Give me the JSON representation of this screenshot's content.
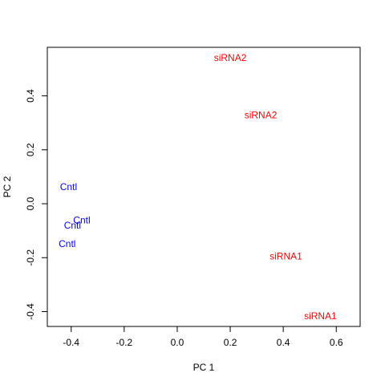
{
  "chart_data": {
    "type": "scatter",
    "title": "",
    "xlabel": "PC 1",
    "ylabel": "PC 2",
    "xlim": [
      -0.49,
      0.69
    ],
    "ylim": [
      -0.455,
      0.58
    ],
    "xticks": [
      {
        "value": -0.4,
        "label": "-0.4"
      },
      {
        "value": -0.2,
        "label": "-0.2"
      },
      {
        "value": 0.0,
        "label": "0.0"
      },
      {
        "value": 0.2,
        "label": "0.2"
      },
      {
        "value": 0.4,
        "label": "0.4"
      },
      {
        "value": 0.6,
        "label": "0.6"
      }
    ],
    "yticks": [
      {
        "value": -0.4,
        "label": "-0.4"
      },
      {
        "value": -0.2,
        "label": "-0.2"
      },
      {
        "value": 0.0,
        "label": "0.0"
      },
      {
        "value": 0.2,
        "label": "0.2"
      },
      {
        "value": 0.4,
        "label": "0.4"
      }
    ],
    "grid": false,
    "legend": "none",
    "colors": {
      "Cntl": "#0000ff",
      "siRNA": "#ff0000"
    },
    "points": [
      {
        "label": "Cntl",
        "x": -0.41,
        "y": 0.062,
        "color": "#0000ff"
      },
      {
        "label": "Cntl",
        "x": -0.36,
        "y": -0.061,
        "color": "#0000ff"
      },
      {
        "label": "Cntl",
        "x": -0.395,
        "y": -0.081,
        "color": "#0000ff"
      },
      {
        "label": "Cntl",
        "x": -0.415,
        "y": -0.149,
        "color": "#0000ff"
      },
      {
        "label": "siRNA2",
        "x": 0.2,
        "y": 0.542,
        "color": "#ff0000"
      },
      {
        "label": "siRNA2",
        "x": 0.315,
        "y": 0.329,
        "color": "#ff0000"
      },
      {
        "label": "siRNA1",
        "x": 0.41,
        "y": -0.195,
        "color": "#ff0000"
      },
      {
        "label": "siRNA1",
        "x": 0.54,
        "y": -0.416,
        "color": "#ff0000"
      }
    ]
  }
}
